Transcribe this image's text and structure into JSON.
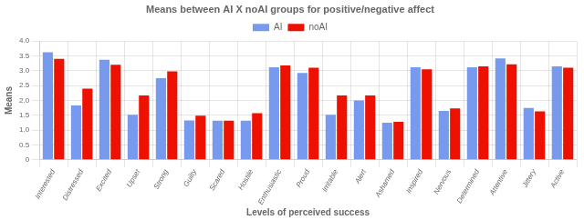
{
  "chart_data": {
    "type": "bar",
    "title": "Means between AI X noAI groups for positive/negative affect",
    "xlabel": "Levels of perceived success",
    "ylabel": "Means",
    "categories": [
      "Interested",
      "Distressed",
      "Excited",
      "Upset",
      "Strong",
      "Guilty",
      "Scared",
      "Hostile",
      "Enthusiastic",
      "Proud",
      "Irritable",
      "Alert",
      "Ashamed",
      "Inspired",
      "Nervous",
      "Determined",
      "Attentive",
      "Jittery",
      "Active"
    ],
    "series": [
      {
        "name": "AI",
        "color": "#7799EE",
        "values": [
          3.62,
          1.83,
          3.37,
          1.52,
          2.75,
          1.33,
          1.32,
          1.32,
          3.12,
          2.93,
          1.52,
          2.0,
          1.25,
          3.12,
          1.65,
          3.12,
          3.42,
          1.75,
          3.15
        ]
      },
      {
        "name": "noAI",
        "color": "#EE1100",
        "values": [
          3.4,
          2.4,
          3.2,
          2.17,
          2.98,
          1.49,
          1.32,
          1.57,
          3.18,
          3.1,
          2.17,
          2.17,
          1.28,
          3.05,
          1.73,
          3.15,
          3.22,
          1.63,
          3.1
        ]
      }
    ],
    "ylim": [
      0,
      4.0
    ],
    "yticks": [
      0,
      0.5,
      {
        "value": 1.0,
        "label": "1.0"
      },
      1.5,
      {
        "value": 2.0,
        "label": "2.0"
      },
      2.5,
      {
        "value": 3.0,
        "label": "3.0"
      },
      3.5,
      {
        "value": 4.0,
        "label": "4.0"
      }
    ],
    "grid": true,
    "legend": "top"
  }
}
